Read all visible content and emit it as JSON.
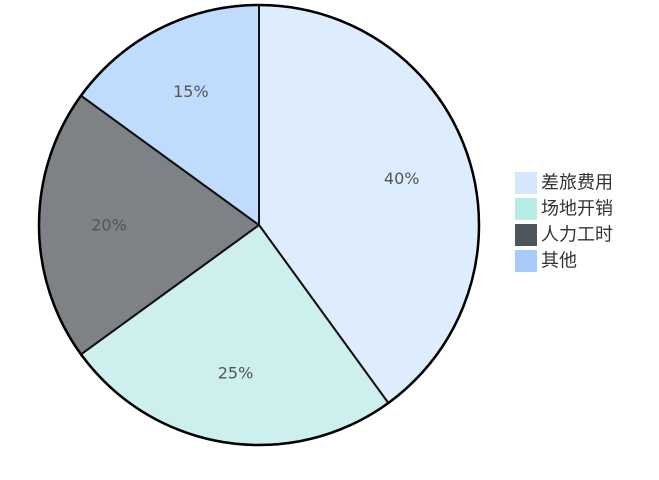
{
  "chart_data": {
    "type": "pie",
    "title": "",
    "categories": [
      "差旅费用",
      "场地开销",
      "人力工时",
      "其他"
    ],
    "values": [
      40,
      25,
      20,
      15
    ],
    "value_labels": [
      "40%",
      "25%",
      "20%",
      "15%"
    ],
    "slice_colors": [
      "#deedfe",
      "#cdefed",
      "#7e8287",
      "#bfdcff"
    ],
    "legend_colors": [
      "#d6e7fd",
      "#b6ebe6",
      "#4f555c",
      "#a6cbfb"
    ],
    "legend_position": "right",
    "start_angle": "12 o'clock",
    "direction": "clockwise"
  }
}
